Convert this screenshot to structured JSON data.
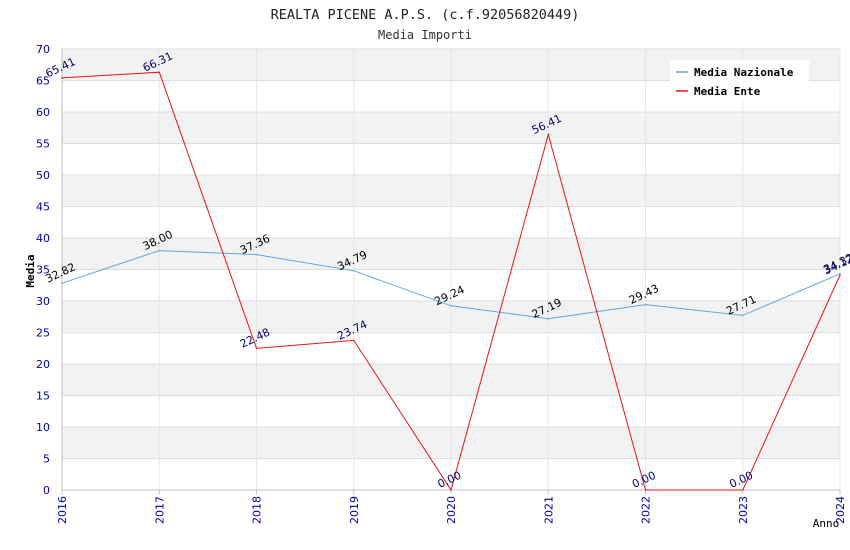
{
  "chart_data": {
    "type": "line",
    "title": "REALTA PICENE A.P.S. (c.f.92056820449)",
    "subtitle": "Media Importi",
    "xlabel": "Anno",
    "ylabel": "Media",
    "categories": [
      "2016",
      "2017",
      "2018",
      "2019",
      "2020",
      "2021",
      "2022",
      "2023",
      "2024"
    ],
    "ylim": [
      0,
      70
    ],
    "yticks": [
      "0",
      "5",
      "10",
      "15",
      "20",
      "25",
      "30",
      "35",
      "40",
      "45",
      "50",
      "55",
      "60",
      "65",
      "70"
    ],
    "grid": "horizontal bands",
    "legend_position": "top-right",
    "series": [
      {
        "name": "Media Nazionale",
        "color": "#5ba8e6",
        "label_color": "#000000",
        "values": [
          32.82,
          38.0,
          37.36,
          34.79,
          29.24,
          27.19,
          29.43,
          27.71,
          34.32
        ],
        "labels": [
          "32.82",
          "38.00",
          "37.36",
          "34.79",
          "29.24",
          "27.19",
          "29.43",
          "27.71",
          "34.32"
        ]
      },
      {
        "name": "Media Ente",
        "color": "#e8141b",
        "label_color": "#00007a",
        "values": [
          65.41,
          66.31,
          22.48,
          23.74,
          0.0,
          56.41,
          0.0,
          0.0,
          34.12
        ],
        "labels": [
          "65.41",
          "66.31",
          "22.48",
          "23.74",
          "0.00",
          "56.41",
          "0.00",
          "0.00",
          "34.12"
        ]
      }
    ],
    "colors": {
      "axis_tick_text": "#0000aa",
      "band": "#f2f2f2",
      "gridline": "#dddddd",
      "axis": "#bfbfbf"
    }
  }
}
